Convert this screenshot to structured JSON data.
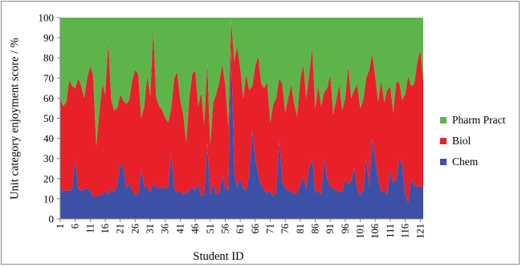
{
  "chart_data": {
    "type": "area",
    "stacked": true,
    "xlabel": "Student ID",
    "ylabel": "Unit category enjoyment score / %",
    "ylim": [
      0,
      100
    ],
    "y_ticks": [
      0,
      10,
      20,
      30,
      40,
      50,
      60,
      70,
      80,
      90,
      100
    ],
    "x_tick_labels": [
      "1",
      "6",
      "11",
      "16",
      "21",
      "26",
      "31",
      "36",
      "41",
      "46",
      "51",
      "56",
      "61",
      "66",
      "71",
      "76",
      "81",
      "86",
      "91",
      "96",
      "101",
      "106",
      "111",
      "116",
      "121"
    ],
    "x": [
      1,
      2,
      3,
      4,
      5,
      6,
      7,
      8,
      9,
      10,
      11,
      12,
      13,
      14,
      15,
      16,
      17,
      18,
      19,
      20,
      21,
      22,
      23,
      24,
      25,
      26,
      27,
      28,
      29,
      30,
      31,
      32,
      33,
      34,
      35,
      36,
      37,
      38,
      39,
      40,
      41,
      42,
      43,
      44,
      45,
      46,
      47,
      48,
      49,
      50,
      51,
      52,
      53,
      54,
      55,
      56,
      57,
      58,
      59,
      60,
      61,
      62,
      63,
      64,
      65,
      66,
      67,
      68,
      69,
      70,
      71,
      72,
      73,
      74,
      75,
      76,
      77,
      78,
      79,
      80,
      81,
      82,
      83,
      84,
      85,
      86,
      87,
      88,
      89,
      90,
      91,
      92,
      93,
      94,
      95,
      96,
      97,
      98,
      99,
      100,
      101,
      102,
      103,
      104,
      105,
      106,
      107,
      108,
      109,
      110,
      111,
      112,
      113,
      114,
      115,
      116,
      117,
      118,
      119,
      120,
      121,
      122
    ],
    "legend_position": "right",
    "grid": false,
    "series": [
      {
        "name": "Chem",
        "color": "#3c50a5",
        "values": [
          15,
          14,
          14,
          14,
          15,
          30,
          15,
          14,
          15,
          15,
          14,
          11,
          11,
          12,
          12,
          14,
          12,
          15,
          13,
          17,
          27,
          26,
          15,
          18,
          14,
          12,
          12,
          25,
          16,
          16,
          13,
          18,
          16,
          15,
          16,
          15,
          16,
          33,
          15,
          13,
          14,
          12,
          13,
          14,
          16,
          14,
          18,
          11,
          12,
          38,
          12,
          18,
          12,
          13,
          22,
          15,
          14,
          85,
          23,
          16,
          20,
          15,
          14,
          22,
          44,
          30,
          22,
          17,
          14,
          13,
          14,
          11,
          13,
          40,
          19,
          15,
          14,
          14,
          12,
          13,
          17,
          21,
          15,
          25,
          30,
          13,
          14,
          12,
          30,
          20,
          16,
          15,
          14,
          14,
          13,
          20,
          17,
          19,
          25,
          15,
          12,
          14,
          30,
          16,
          40,
          30,
          20,
          13,
          14,
          12,
          24,
          18,
          19,
          30,
          27,
          12,
          8,
          20,
          17,
          16,
          16,
          16
        ]
      },
      {
        "name": "Biol",
        "color": "#e8202a",
        "values": [
          45,
          42,
          44,
          55,
          51,
          35,
          55,
          52,
          45,
          55,
          62,
          60,
          25,
          40,
          55,
          48,
          76,
          44,
          41,
          38,
          35,
          33,
          42,
          41,
          55,
          62,
          60,
          25,
          40,
          55,
          48,
          76,
          44,
          41,
          38,
          35,
          32,
          22,
          55,
          60,
          45,
          40,
          25,
          46,
          56,
          60,
          38,
          52,
          35,
          40,
          25,
          40,
          50,
          55,
          55,
          52,
          32,
          14,
          55,
          70,
          55,
          45,
          58,
          42,
          22,
          46,
          59,
          50,
          51,
          55,
          34,
          46,
          47,
          30,
          48,
          38,
          46,
          53,
          45,
          38,
          52,
          56,
          45,
          47,
          55,
          42,
          52,
          44,
          33,
          45,
          56,
          37,
          45,
          53,
          41,
          40,
          59,
          41,
          39,
          52,
          43,
          45,
          40,
          58,
          42,
          41,
          38,
          56,
          44,
          52,
          42,
          35,
          49,
          38,
          32,
          50,
          63,
          46,
          50,
          62,
          68,
          53
        ]
      },
      {
        "name": "Pharm Pract",
        "color": "#5db54a",
        "values": [
          40,
          44,
          42,
          31,
          34,
          35,
          30,
          34,
          40,
          30,
          24,
          29,
          64,
          48,
          33,
          38,
          12,
          41,
          46,
          45,
          38,
          41,
          43,
          41,
          31,
          26,
          28,
          50,
          44,
          29,
          39,
          6,
          40,
          44,
          46,
          50,
          52,
          45,
          30,
          27,
          41,
          48,
          62,
          40,
          28,
          26,
          44,
          37,
          53,
          22,
          63,
          42,
          38,
          32,
          23,
          33,
          54,
          1,
          22,
          14,
          25,
          40,
          28,
          36,
          34,
          24,
          19,
          33,
          35,
          32,
          52,
          43,
          40,
          30,
          33,
          47,
          40,
          33,
          43,
          49,
          31,
          23,
          40,
          28,
          15,
          45,
          34,
          44,
          37,
          35,
          28,
          48,
          41,
          33,
          46,
          40,
          24,
          40,
          36,
          33,
          45,
          41,
          30,
          26,
          18,
          29,
          42,
          31,
          42,
          36,
          34,
          47,
          32,
          32,
          41,
          38,
          29,
          34,
          33,
          22,
          16,
          31
        ]
      }
    ]
  }
}
